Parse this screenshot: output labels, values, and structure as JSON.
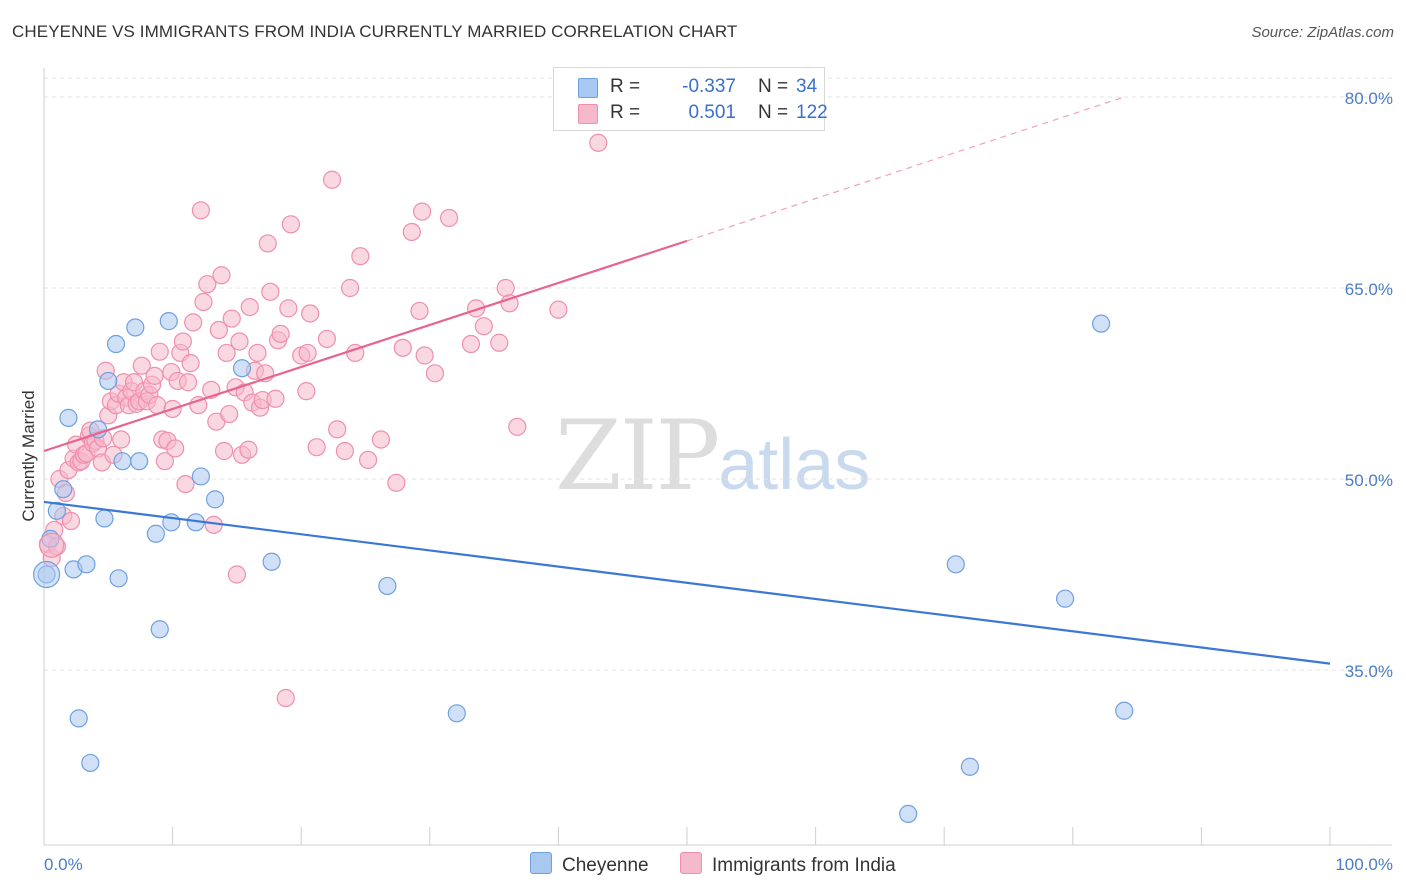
{
  "header": {
    "title": "CHEYENNE VS IMMIGRANTS FROM INDIA CURRENTLY MARRIED CORRELATION CHART",
    "source": "Source: ZipAtlas.com"
  },
  "watermark": {
    "zip": "ZIP",
    "atlas": "atlas"
  },
  "legend_top": {
    "rows": [
      {
        "r_label": "R =",
        "r_value": "-0.337",
        "n_label": "N =",
        "n_value": "34",
        "color": "#a9c8f0"
      },
      {
        "r_label": "R =",
        "r_value": "0.501",
        "n_label": "N =",
        "n_value": "122",
        "color": "#f6b8cb"
      }
    ]
  },
  "legend_bottom": {
    "items": [
      {
        "label": "Cheyenne",
        "color": "#a9c8f0"
      },
      {
        "label": "Immigrants from India",
        "color": "#f6b8cb"
      }
    ]
  },
  "chart_data": {
    "type": "scatter",
    "title": "CHEYENNE VS IMMIGRANTS FROM INDIA CURRENTLY MARRIED CORRELATION CHART",
    "xlabel": "",
    "ylabel": "Currently Married",
    "xlim": [
      0,
      100
    ],
    "ylim": [
      20,
      81
    ],
    "x_ticks_labeled": [
      "0.0%",
      "100.0%"
    ],
    "y_ticks": [
      35,
      50,
      65,
      80
    ],
    "y_tick_labels": [
      "35.0%",
      "50.0%",
      "65.0%",
      "80.0%"
    ],
    "grid": true,
    "legend_position": "top-center",
    "series": [
      {
        "name": "Cheyenne",
        "color": "#6fa0e0",
        "fill": "#a9c8f0",
        "trend": {
          "x0": 0,
          "y0": 48.2,
          "x1": 100,
          "y1": 35.5,
          "color": "#3a78d4"
        },
        "points": [
          [
            0.2,
            42.5
          ],
          [
            0.5,
            45.3
          ],
          [
            1.0,
            47.5
          ],
          [
            1.5,
            49.2
          ],
          [
            1.9,
            54.8
          ],
          [
            2.3,
            42.9
          ],
          [
            2.7,
            31.2
          ],
          [
            3.3,
            43.3
          ],
          [
            3.6,
            27.7
          ],
          [
            4.2,
            53.9
          ],
          [
            4.7,
            46.9
          ],
          [
            5.0,
            57.7
          ],
          [
            5.6,
            60.6
          ],
          [
            5.8,
            42.2
          ],
          [
            6.1,
            51.4
          ],
          [
            7.1,
            61.9
          ],
          [
            7.4,
            51.4
          ],
          [
            8.7,
            45.7
          ],
          [
            9.0,
            38.2
          ],
          [
            9.7,
            62.4
          ],
          [
            9.9,
            46.6
          ],
          [
            11.8,
            46.6
          ],
          [
            12.2,
            50.2
          ],
          [
            13.3,
            48.4
          ],
          [
            15.4,
            58.7
          ],
          [
            17.7,
            43.5
          ],
          [
            26.7,
            41.6
          ],
          [
            32.1,
            31.6
          ],
          [
            67.2,
            23.7
          ],
          [
            70.9,
            43.3
          ],
          [
            72.0,
            27.4
          ],
          [
            79.4,
            40.6
          ],
          [
            82.2,
            62.2
          ],
          [
            84.0,
            31.8
          ]
        ]
      },
      {
        "name": "Immigrants from India",
        "color": "#ef8fae",
        "fill": "#f6b8cb",
        "trend": {
          "x0": 0,
          "y0": 52.2,
          "x1": 50,
          "y1": 68.7,
          "color": "#e8638f"
        },
        "trend_extension": {
          "x0": 50,
          "y0": 68.7,
          "x1": 84,
          "y1": 80.0
        },
        "points": [
          [
            0.3,
            44.9
          ],
          [
            0.6,
            43.8
          ],
          [
            0.8,
            46.0
          ],
          [
            1.0,
            44.7
          ],
          [
            1.2,
            50.0
          ],
          [
            1.5,
            47.1
          ],
          [
            1.7,
            48.9
          ],
          [
            1.9,
            50.7
          ],
          [
            2.1,
            46.7
          ],
          [
            2.3,
            51.6
          ],
          [
            2.5,
            52.7
          ],
          [
            2.7,
            51.3
          ],
          [
            2.9,
            51.4
          ],
          [
            3.1,
            51.9
          ],
          [
            3.3,
            52.0
          ],
          [
            3.5,
            53.4
          ],
          [
            3.6,
            53.8
          ],
          [
            3.8,
            52.8
          ],
          [
            4.0,
            53.0
          ],
          [
            4.2,
            52.4
          ],
          [
            4.5,
            51.3
          ],
          [
            4.6,
            53.2
          ],
          [
            4.8,
            58.5
          ],
          [
            5.0,
            55.0
          ],
          [
            5.2,
            56.1
          ],
          [
            5.4,
            51.9
          ],
          [
            5.6,
            55.8
          ],
          [
            5.8,
            56.7
          ],
          [
            6.0,
            53.1
          ],
          [
            6.2,
            57.6
          ],
          [
            6.4,
            56.4
          ],
          [
            6.6,
            55.8
          ],
          [
            6.8,
            56.9
          ],
          [
            7.0,
            57.6
          ],
          [
            7.2,
            55.9
          ],
          [
            7.4,
            56.1
          ],
          [
            7.6,
            58.9
          ],
          [
            7.8,
            56.9
          ],
          [
            8.0,
            56.1
          ],
          [
            8.2,
            56.6
          ],
          [
            8.4,
            57.4
          ],
          [
            8.6,
            58.1
          ],
          [
            8.8,
            55.8
          ],
          [
            9.0,
            60.0
          ],
          [
            9.2,
            53.1
          ],
          [
            9.4,
            51.4
          ],
          [
            9.6,
            53.0
          ],
          [
            9.9,
            58.4
          ],
          [
            10.0,
            55.5
          ],
          [
            10.2,
            52.4
          ],
          [
            10.4,
            57.7
          ],
          [
            10.6,
            59.9
          ],
          [
            10.8,
            60.8
          ],
          [
            11.0,
            49.6
          ],
          [
            11.2,
            57.6
          ],
          [
            11.4,
            59.1
          ],
          [
            11.6,
            62.3
          ],
          [
            12.0,
            55.8
          ],
          [
            12.2,
            71.1
          ],
          [
            12.4,
            63.9
          ],
          [
            12.7,
            65.3
          ],
          [
            13.0,
            57.0
          ],
          [
            13.2,
            46.4
          ],
          [
            13.4,
            54.5
          ],
          [
            13.6,
            61.7
          ],
          [
            13.8,
            66.0
          ],
          [
            14.0,
            52.2
          ],
          [
            14.2,
            59.9
          ],
          [
            14.4,
            55.1
          ],
          [
            14.6,
            62.6
          ],
          [
            14.9,
            57.2
          ],
          [
            15.0,
            42.5
          ],
          [
            15.2,
            60.8
          ],
          [
            15.4,
            51.9
          ],
          [
            15.6,
            56.8
          ],
          [
            15.9,
            52.3
          ],
          [
            16.0,
            63.5
          ],
          [
            16.2,
            56.0
          ],
          [
            16.4,
            58.5
          ],
          [
            16.6,
            59.9
          ],
          [
            16.8,
            55.6
          ],
          [
            17.0,
            56.2
          ],
          [
            17.2,
            58.3
          ],
          [
            17.4,
            68.5
          ],
          [
            17.6,
            64.7
          ],
          [
            18.0,
            56.3
          ],
          [
            18.2,
            60.9
          ],
          [
            18.4,
            61.4
          ],
          [
            18.8,
            32.8
          ],
          [
            19.0,
            63.4
          ],
          [
            19.2,
            70.0
          ],
          [
            20.0,
            59.7
          ],
          [
            20.4,
            56.9
          ],
          [
            20.5,
            59.9
          ],
          [
            20.7,
            63.0
          ],
          [
            21.2,
            52.5
          ],
          [
            22.0,
            61.0
          ],
          [
            22.4,
            73.5
          ],
          [
            22.8,
            53.9
          ],
          [
            23.4,
            52.2
          ],
          [
            23.8,
            65.0
          ],
          [
            24.2,
            59.9
          ],
          [
            24.6,
            67.5
          ],
          [
            25.2,
            51.5
          ],
          [
            26.2,
            53.1
          ],
          [
            27.4,
            49.7
          ],
          [
            27.9,
            60.3
          ],
          [
            28.6,
            69.4
          ],
          [
            29.2,
            63.2
          ],
          [
            29.4,
            71.0
          ],
          [
            29.6,
            59.7
          ],
          [
            30.4,
            58.3
          ],
          [
            31.5,
            70.5
          ],
          [
            33.2,
            60.6
          ],
          [
            33.6,
            63.4
          ],
          [
            34.2,
            62.0
          ],
          [
            35.4,
            60.7
          ],
          [
            35.9,
            65.0
          ],
          [
            36.2,
            63.8
          ],
          [
            36.8,
            54.1
          ],
          [
            40.0,
            63.3
          ],
          [
            43.1,
            76.4
          ]
        ]
      }
    ]
  }
}
